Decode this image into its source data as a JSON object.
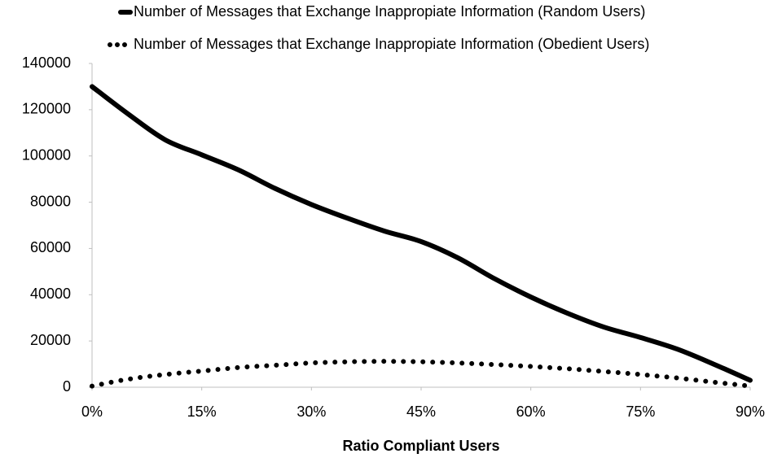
{
  "chart_data": {
    "type": "line",
    "xlabel": "Ratio Compliant Users",
    "x": [
      0,
      5,
      10,
      15,
      20,
      25,
      30,
      35,
      40,
      45,
      50,
      55,
      60,
      65,
      70,
      75,
      80,
      85,
      90
    ],
    "series": [
      {
        "name": "Number of Messages that Exchange Inappropiate Information (Random Users)",
        "color": "#000000",
        "style": "solid",
        "values": [
          130000,
          118000,
          107000,
          100500,
          94000,
          86000,
          79000,
          73000,
          67500,
          63000,
          56000,
          47000,
          39000,
          32000,
          26000,
          21500,
          16500,
          10000,
          3000
        ]
      },
      {
        "name": "Number of Messages that Exchange Inappropiate Information (Obedient Users)",
        "color": "#000000",
        "style": "dotted",
        "values": [
          500,
          3500,
          5500,
          7000,
          8500,
          9500,
          10500,
          11000,
          11200,
          11000,
          10500,
          9800,
          9000,
          8000,
          6800,
          5500,
          4000,
          2200,
          500
        ]
      }
    ],
    "xlim": [
      0,
      90
    ],
    "xticks": [
      {
        "value": 0,
        "label": "0%"
      },
      {
        "value": 15,
        "label": "15%"
      },
      {
        "value": 30,
        "label": "30%"
      },
      {
        "value": 45,
        "label": "45%"
      },
      {
        "value": 60,
        "label": "60%"
      },
      {
        "value": 75,
        "label": "75%"
      },
      {
        "value": 90,
        "label": "90%"
      }
    ],
    "ylim": [
      0,
      140000
    ],
    "yticks": [
      0,
      20000,
      40000,
      60000,
      80000,
      100000,
      120000,
      140000
    ],
    "grid": false,
    "legend": "top"
  }
}
